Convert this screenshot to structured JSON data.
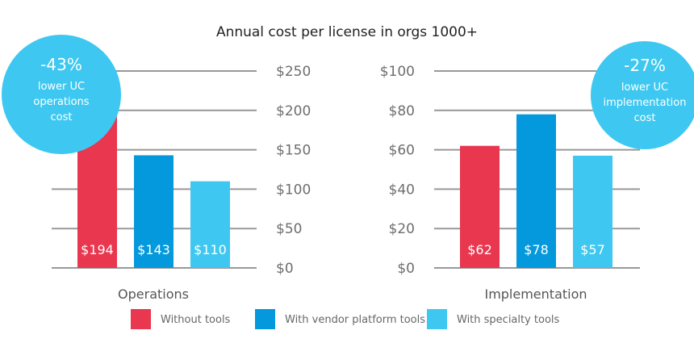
{
  "chart_data": {
    "type": "bar",
    "title": "Annual cost per license in orgs 1000+",
    "legend": {
      "placement": "bottom",
      "entries": [
        {
          "name": "Without tools",
          "color": "#e8374f"
        },
        {
          "name": "With vendor platform tools",
          "color": "#0499dc"
        },
        {
          "name": "With specialty tools",
          "color": "#3ec8f1"
        }
      ]
    },
    "panels": [
      {
        "category": "Operations",
        "ylim": [
          0,
          250
        ],
        "yticks": [
          0,
          50,
          100,
          150,
          200,
          250
        ],
        "ytick_labels": [
          "$0",
          "$50",
          "$100",
          "$150",
          "$200",
          "$250"
        ],
        "axis_side": "right",
        "grid": true,
        "series": [
          {
            "name": "Without tools",
            "value": 194,
            "label": "$194"
          },
          {
            "name": "With vendor platform tools",
            "value": 143,
            "label": "$143"
          },
          {
            "name": "With specialty tools",
            "value": 110,
            "label": "$110"
          }
        ],
        "annotation": {
          "percent": "-43%",
          "lines": [
            "lower UC",
            "operations",
            "cost"
          ]
        }
      },
      {
        "category": "Implementation",
        "ylim": [
          0,
          100
        ],
        "yticks": [
          0,
          20,
          40,
          60,
          80,
          100
        ],
        "ytick_labels": [
          "$0",
          "$20",
          "$40",
          "$60",
          "$80",
          "$100"
        ],
        "axis_side": "left",
        "grid": true,
        "series": [
          {
            "name": "Without tools",
            "value": 62,
            "label": "$62"
          },
          {
            "name": "With vendor platform tools",
            "value": 78,
            "label": "$78"
          },
          {
            "name": "With specialty tools",
            "value": 57,
            "label": "$57"
          }
        ],
        "annotation": {
          "percent": "-27%",
          "lines": [
            "lower UC",
            "implementation",
            "cost"
          ]
        }
      }
    ],
    "colors": {
      "grid": "#9a9899",
      "badge": "#3ec8f1"
    }
  }
}
